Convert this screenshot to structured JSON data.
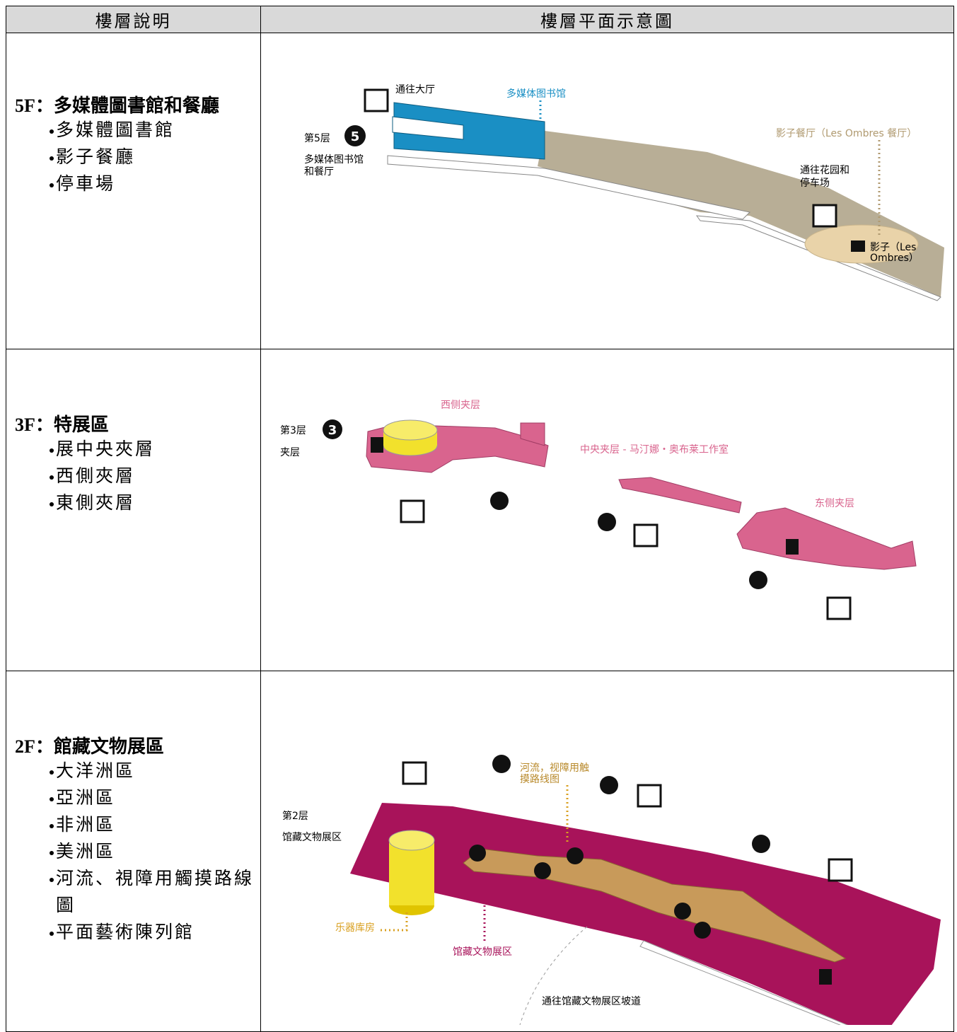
{
  "table": {
    "headers": [
      "樓層說明",
      "樓層平面示意圖"
    ],
    "rows": [
      {
        "floor": "5F：多媒體圖書館和餐廳",
        "items": [
          "多媒體圖書館",
          "影子餐廳",
          "停車場"
        ],
        "plan": {
          "badge": "5",
          "labels": [
            "通往大厅",
            "多媒体图书馆",
            "第5层",
            "多媒体图书馆",
            "和餐厅",
            "影子餐厅（Les Ombres 餐厅）",
            "通往花园和",
            "停车场",
            "影子（Les",
            "Ombres）"
          ]
        }
      },
      {
        "floor": "3F：特展區",
        "items": [
          "展中央夾層",
          "西側夾層",
          "東側夾層"
        ],
        "plan": {
          "badge": "3",
          "labels": [
            "西侧夹层",
            "第3层",
            "夹层",
            "中央夹层 - 马汀娜・奥布莱工作室",
            "东侧夹层"
          ]
        }
      },
      {
        "floor": "2F：館藏文物展區",
        "items": [
          "大洋洲區",
          "亞洲區",
          "非洲區",
          "美洲區",
          "河流、視障用觸摸路線圖",
          "平面藝術陳列館"
        ],
        "plan": {
          "labels": [
            "河流，视障用触",
            "摸路线图",
            "第2层",
            "馆藏文物展区",
            "乐器库房",
            "馆藏文物展区",
            "通往馆藏文物展区坡道"
          ]
        }
      }
    ]
  }
}
